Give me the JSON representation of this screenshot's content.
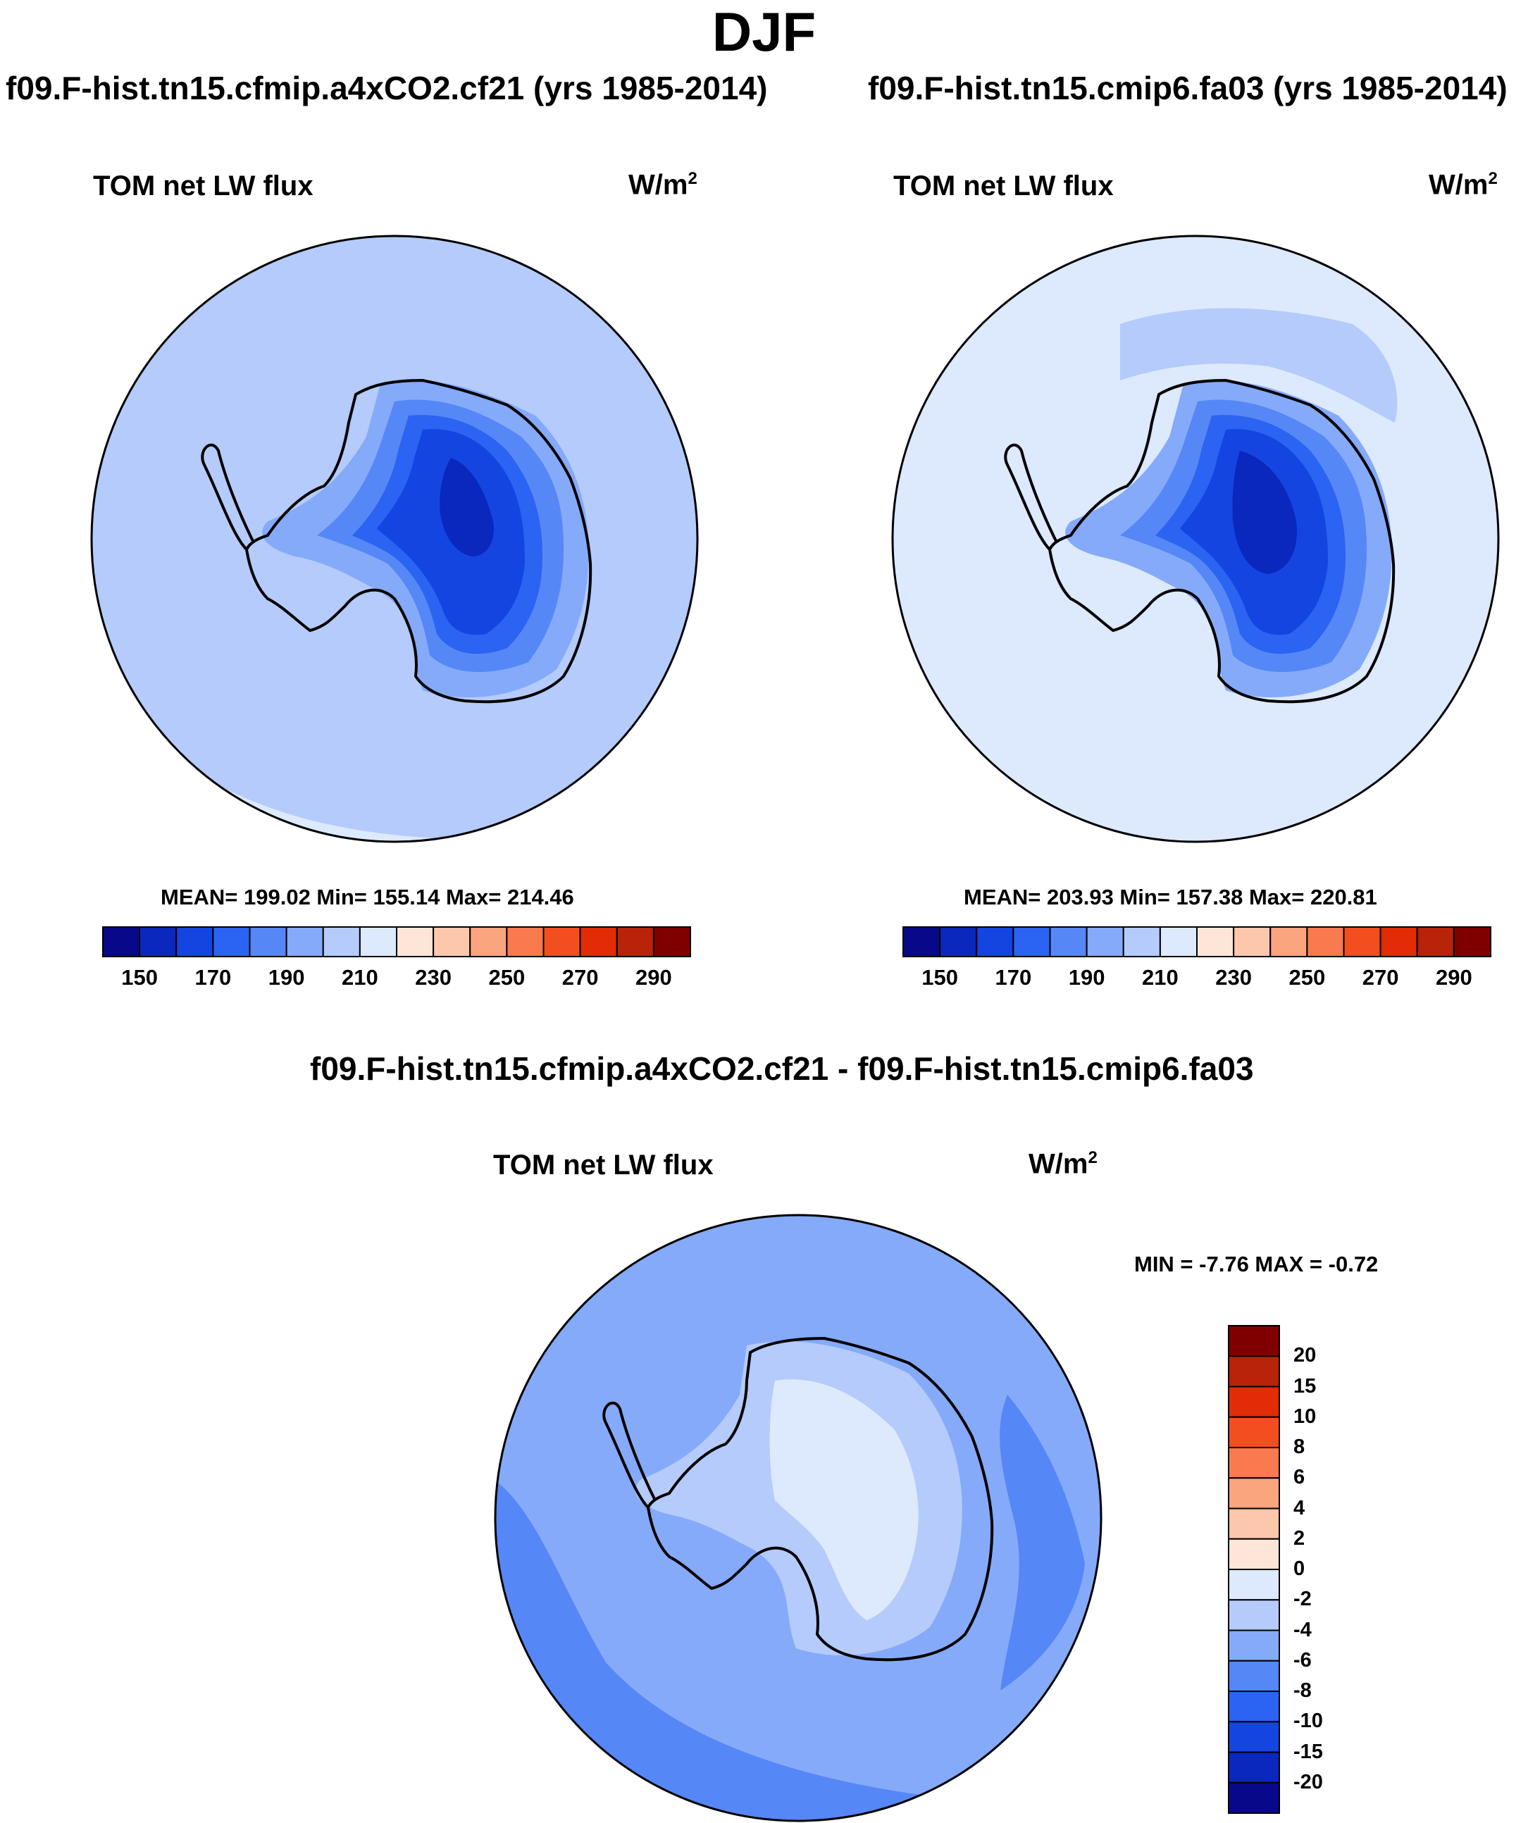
{
  "title": "DJF",
  "panels": [
    {
      "id": "case",
      "case_title": "f09.F-hist.tn15.cfmip.a4xCO2.cf21 (yrs 1985-2014)",
      "left_label": "TOM net LW flux",
      "units": "W/m",
      "units_exp": "2",
      "stats": "MEAN= 199.02  Min= 155.14  Max= 214.46",
      "mean": 199.02,
      "min": 155.14,
      "max": 214.46
    },
    {
      "id": "control",
      "case_title": "f09.F-hist.tn15.cmip6.fa03 (yrs 1985-2014)",
      "left_label": "TOM net LW flux",
      "units": "W/m",
      "units_exp": "2",
      "stats": "MEAN= 203.93  Min= 157.38  Max= 220.81",
      "mean": 203.93,
      "min": 157.38,
      "max": 220.81
    }
  ],
  "diff_panel": {
    "title": "f09.F-hist.tn15.cfmip.a4xCO2.cf21 - f09.F-hist.tn15.cmip6.fa03",
    "left_label": "TOM net LW flux",
    "units": "W/m",
    "units_exp": "2",
    "stats": "MIN =  -7.76 MAX =  -0.72",
    "min": -7.76,
    "max": -0.72
  },
  "colorbar_abs": {
    "labels": [
      "150",
      "170",
      "190",
      "210",
      "230",
      "250",
      "270",
      "290"
    ],
    "colors": [
      "#08088a",
      "#0a28bd",
      "#1445e0",
      "#2b63f2",
      "#5587f7",
      "#85aafa",
      "#b4cbfb",
      "#dde9fd",
      "#fde6d8",
      "#fcc7ab",
      "#fba57e",
      "#f87a4e",
      "#f24e20",
      "#e12c06",
      "#b8230a",
      "#800000"
    ]
  },
  "colorbar_diff": {
    "labels": [
      "20",
      "15",
      "10",
      "8",
      "6",
      "4",
      "2",
      "0",
      "-2",
      "-4",
      "-6",
      "-8",
      "-10",
      "-15",
      "-20"
    ],
    "colors": [
      "#800000",
      "#b8230a",
      "#e12c06",
      "#f24e20",
      "#f87a4e",
      "#fba57e",
      "#fcc7ab",
      "#fde6d8",
      "#dde9fd",
      "#b4cbfb",
      "#85aafa",
      "#5587f7",
      "#2b63f2",
      "#1445e0",
      "#0a28bd",
      "#08088a"
    ]
  },
  "chart_data": [
    {
      "type": "heatmap",
      "projection": "south-polar-stereographic",
      "variable": "TOM net LW flux",
      "units": "W/m2",
      "levels": [
        150,
        160,
        170,
        180,
        190,
        200,
        210,
        220,
        230,
        240,
        250,
        260,
        270,
        280,
        290
      ],
      "mean": 199.02,
      "min": 155.14,
      "max": 214.46
    },
    {
      "type": "heatmap",
      "projection": "south-polar-stereographic",
      "variable": "TOM net LW flux",
      "units": "W/m2",
      "levels": [
        150,
        160,
        170,
        180,
        190,
        200,
        210,
        220,
        230,
        240,
        250,
        260,
        270,
        280,
        290
      ],
      "mean": 203.93,
      "min": 157.38,
      "max": 220.81
    },
    {
      "type": "heatmap",
      "projection": "south-polar-stereographic",
      "variable": "TOM net LW flux difference",
      "units": "W/m2",
      "levels": [
        -20,
        -15,
        -10,
        -8,
        -6,
        -4,
        -2,
        0,
        2,
        4,
        6,
        8,
        10,
        15,
        20
      ],
      "min": -7.76,
      "max": -0.72
    }
  ]
}
